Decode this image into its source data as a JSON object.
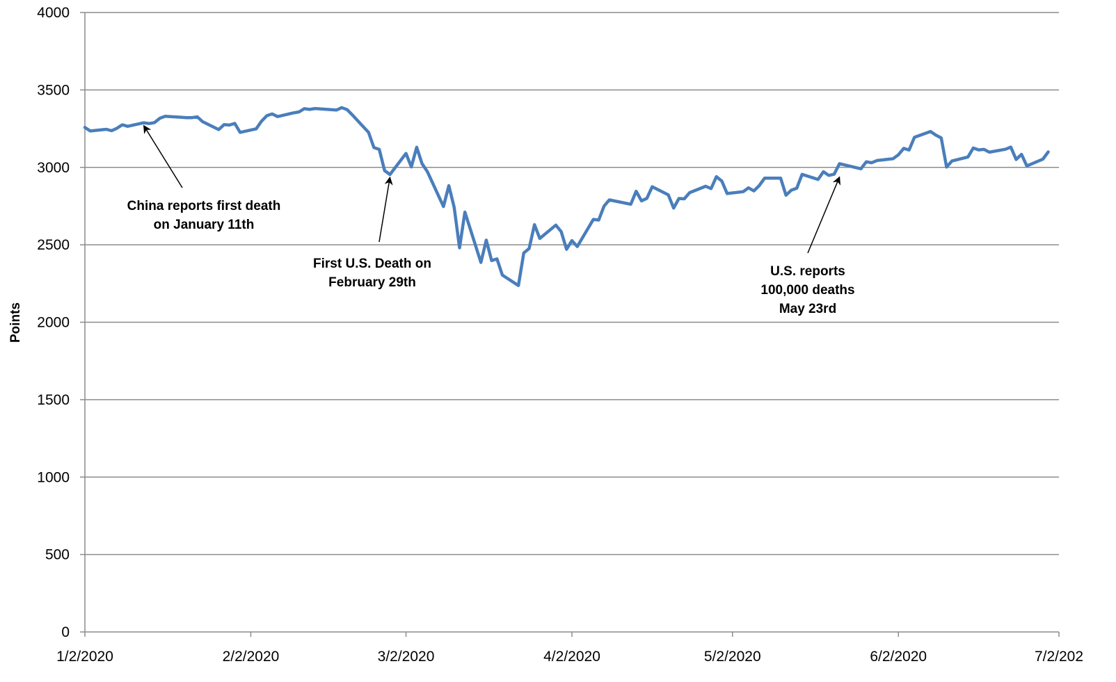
{
  "chart_data": {
    "type": "line",
    "title": "",
    "xlabel": "",
    "ylabel": "Points",
    "ylim": [
      0,
      4000
    ],
    "xlim": [
      "2020-01-02",
      "2020-07-02"
    ],
    "yticks": [
      0,
      500,
      1000,
      1500,
      2000,
      2500,
      3000,
      3500,
      4000
    ],
    "xticks": [
      "2020-01-02",
      "2020-02-02",
      "2020-03-02",
      "2020-04-02",
      "2020-05-02",
      "2020-06-02",
      "2020-07-02"
    ],
    "xtick_labels": [
      "1/2/2020",
      "2/2/2020",
      "3/2/2020",
      "4/2/2020",
      "5/2/2020",
      "6/2/2020",
      "7/2/202"
    ],
    "grid": "horizontal",
    "line_color": "#4a7ebb",
    "series": [
      {
        "x": [
          "2020-01-02",
          "2020-01-03",
          "2020-01-06",
          "2020-01-07",
          "2020-01-08",
          "2020-01-09",
          "2020-01-10",
          "2020-01-13",
          "2020-01-14",
          "2020-01-15",
          "2020-01-16",
          "2020-01-17",
          "2020-01-21",
          "2020-01-22",
          "2020-01-23",
          "2020-01-24",
          "2020-01-27",
          "2020-01-28",
          "2020-01-29",
          "2020-01-30",
          "2020-01-31",
          "2020-02-03",
          "2020-02-04",
          "2020-02-05",
          "2020-02-06",
          "2020-02-07",
          "2020-02-10",
          "2020-02-11",
          "2020-02-12",
          "2020-02-13",
          "2020-02-14",
          "2020-02-18",
          "2020-02-19",
          "2020-02-20",
          "2020-02-21",
          "2020-02-24",
          "2020-02-25",
          "2020-02-26",
          "2020-02-27",
          "2020-02-28",
          "2020-03-02",
          "2020-03-03",
          "2020-03-04",
          "2020-03-05",
          "2020-03-06",
          "2020-03-09",
          "2020-03-10",
          "2020-03-11",
          "2020-03-12",
          "2020-03-13",
          "2020-03-16",
          "2020-03-17",
          "2020-03-18",
          "2020-03-19",
          "2020-03-20",
          "2020-03-23",
          "2020-03-24",
          "2020-03-25",
          "2020-03-26",
          "2020-03-27",
          "2020-03-30",
          "2020-03-31",
          "2020-04-01",
          "2020-04-02",
          "2020-04-03",
          "2020-04-06",
          "2020-04-07",
          "2020-04-08",
          "2020-04-09",
          "2020-04-13",
          "2020-04-14",
          "2020-04-15",
          "2020-04-16",
          "2020-04-17",
          "2020-04-20",
          "2020-04-21",
          "2020-04-22",
          "2020-04-23",
          "2020-04-24",
          "2020-04-27",
          "2020-04-28",
          "2020-04-29",
          "2020-04-30",
          "2020-05-01",
          "2020-05-04",
          "2020-05-05",
          "2020-05-06",
          "2020-05-07",
          "2020-05-08",
          "2020-05-11",
          "2020-05-12",
          "2020-05-13",
          "2020-05-14",
          "2020-05-15",
          "2020-05-18",
          "2020-05-19",
          "2020-05-20",
          "2020-05-21",
          "2020-05-22",
          "2020-05-26",
          "2020-05-27",
          "2020-05-28",
          "2020-05-29",
          "2020-06-01",
          "2020-06-02",
          "2020-06-03",
          "2020-06-04",
          "2020-06-05",
          "2020-06-08",
          "2020-06-09",
          "2020-06-10",
          "2020-06-11",
          "2020-06-12",
          "2020-06-15",
          "2020-06-16",
          "2020-06-17",
          "2020-06-18",
          "2020-06-19",
          "2020-06-22",
          "2020-06-23",
          "2020-06-24",
          "2020-06-25",
          "2020-06-26",
          "2020-06-29",
          "2020-06-30"
        ],
        "y": [
          3258,
          3235,
          3246,
          3237,
          3253,
          3275,
          3265,
          3288,
          3283,
          3289,
          3317,
          3330,
          3321,
          3321,
          3326,
          3295,
          3244,
          3276,
          3273,
          3284,
          3226,
          3249,
          3298,
          3334,
          3345,
          3328,
          3352,
          3358,
          3379,
          3374,
          3380,
          3370,
          3386,
          3373,
          3338,
          3226,
          3128,
          3116,
          2979,
          2954,
          3090,
          3003,
          3130,
          3024,
          2972,
          2747,
          2882,
          2741,
          2481,
          2711,
          2386,
          2530,
          2398,
          2409,
          2305,
          2237,
          2447,
          2476,
          2630,
          2541,
          2627,
          2585,
          2471,
          2527,
          2489,
          2664,
          2660,
          2750,
          2790,
          2762,
          2846,
          2784,
          2800,
          2875,
          2823,
          2737,
          2799,
          2797,
          2837,
          2878,
          2863,
          2940,
          2912,
          2831,
          2843,
          2868,
          2848,
          2882,
          2930,
          2930,
          2820,
          2853,
          2865,
          2955,
          2922,
          2972,
          2948,
          2956,
          3024,
          2991,
          3036,
          3030,
          3044,
          3056,
          3081,
          3123,
          3112,
          3194,
          3232,
          3208,
          3190,
          3002,
          3041,
          3067,
          3125,
          3113,
          3116,
          3098,
          3117,
          3131,
          3051,
          3084,
          3009,
          3053,
          3100
        ]
      }
    ],
    "annotations": [
      {
        "lines": [
          "China reports first death",
          "on January 11th"
        ],
        "target": {
          "x": "2020-01-13",
          "y": 3288
        }
      },
      {
        "lines": [
          "First U.S. Death on",
          "February 29th"
        ],
        "target": {
          "x": "2020-02-28",
          "y": 2954
        }
      },
      {
        "lines": [
          "U.S. reports",
          "100,000 deaths",
          "May 23rd"
        ],
        "target": {
          "x": "2020-05-22",
          "y": 2956
        }
      }
    ]
  }
}
